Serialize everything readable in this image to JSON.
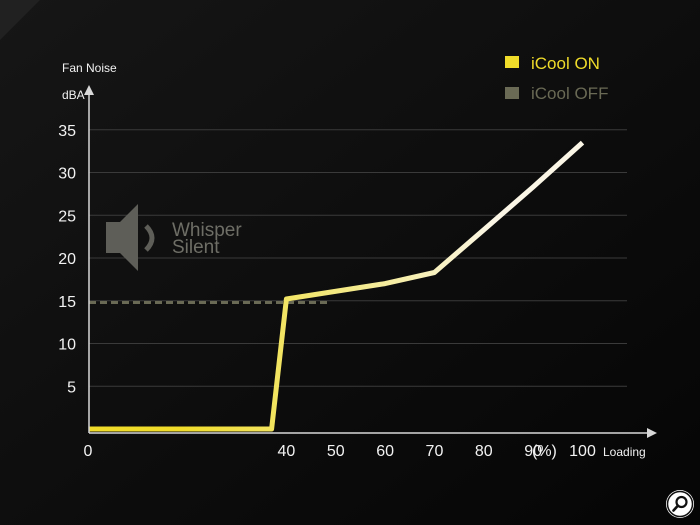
{
  "chart_data": {
    "type": "line",
    "ylabel_top": "Fan Noise",
    "ylabel_unit": "dBA",
    "xlabel": "Loading",
    "x_unit_label": "(%)",
    "xlim": [
      0,
      115
    ],
    "ylim": [
      0,
      38
    ],
    "x_ticks": [
      "0",
      "40",
      "50",
      "60",
      "70",
      "80",
      "90",
      "100"
    ],
    "x_tick_values": [
      0,
      40,
      50,
      60,
      70,
      80,
      90,
      100
    ],
    "y_ticks": [
      "5",
      "10",
      "15",
      "20",
      "25",
      "30",
      "35"
    ],
    "y_tick_values": [
      5,
      10,
      15,
      20,
      25,
      30,
      35
    ],
    "grid": true,
    "legend_position": "top-right",
    "series": [
      {
        "name": "iCool ON",
        "color": "#f0dc2a",
        "style": "solid",
        "x": [
          0,
          37,
          40,
          60,
          70,
          80,
          90,
          100
        ],
        "y": [
          0,
          0,
          15.2,
          17,
          18.3,
          23.3,
          28.3,
          33.5
        ]
      },
      {
        "name": "iCool OFF",
        "color": "#6a6a55",
        "style": "dashed",
        "x": [
          0,
          49
        ],
        "y": [
          14.8,
          14.8
        ]
      }
    ],
    "annotation": {
      "line1": "Whisper",
      "line2": "Silent",
      "icon": "speaker-icon"
    }
  }
}
